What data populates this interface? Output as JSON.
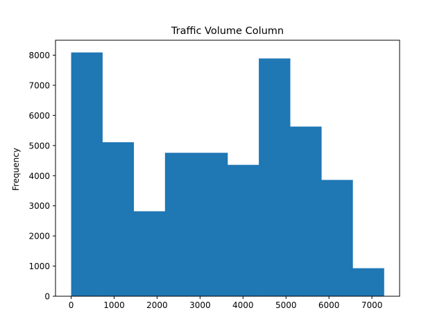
{
  "chart_data": {
    "type": "bar",
    "title": "Traffic Volume Column",
    "xlabel": "",
    "ylabel": "Frequency",
    "bin_edges": [
      0,
      728,
      1456,
      2184,
      2912,
      3640,
      4368,
      5096,
      5824,
      6552,
      7280
    ],
    "values": [
      8090,
      5110,
      2820,
      4760,
      4760,
      4360,
      7890,
      5630,
      3860,
      930
    ],
    "xlim": [
      -364,
      7644
    ],
    "ylim": [
      0,
      8495
    ],
    "xticks": [
      0,
      1000,
      2000,
      3000,
      4000,
      5000,
      6000,
      7000
    ],
    "yticks": [
      0,
      1000,
      2000,
      3000,
      4000,
      5000,
      6000,
      7000,
      8000
    ],
    "xtick_labels": [
      "0",
      "1000",
      "2000",
      "3000",
      "4000",
      "5000",
      "6000",
      "7000"
    ],
    "ytick_labels": [
      "0",
      "1000",
      "2000",
      "3000",
      "4000",
      "5000",
      "6000",
      "7000",
      "8000"
    ],
    "bar_color": "#1f77b4",
    "grid": false,
    "legend": "none"
  }
}
